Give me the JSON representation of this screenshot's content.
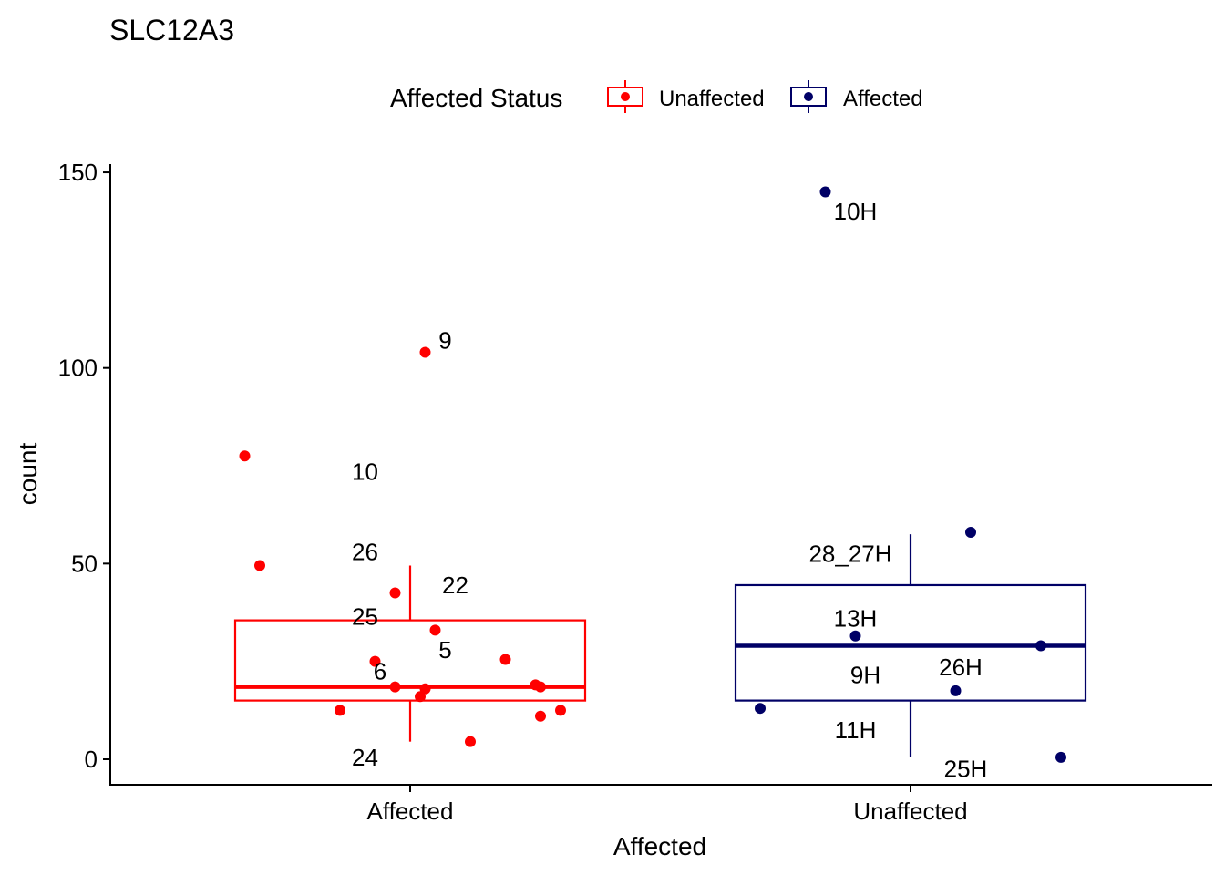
{
  "chart_data": {
    "type": "box",
    "title": "SLC12A3",
    "xlabel": "Affected",
    "ylabel": "count",
    "ylim": [
      -6,
      152
    ],
    "yticks": [
      0,
      50,
      100,
      150
    ],
    "categories": [
      "Affected",
      "Unaffected"
    ],
    "grid": false,
    "legend": {
      "title": "Affected Status",
      "placement": "top",
      "entries": [
        {
          "label": "Unaffected",
          "color": "#FF0000"
        },
        {
          "label": "Affected",
          "color": "#000066"
        }
      ]
    },
    "boxes": [
      {
        "category": "Affected",
        "color": "#FF0000",
        "whisker_low": 4.5,
        "q1": 15,
        "median": 18.5,
        "q3": 35.5,
        "whisker_high": 49.5
      },
      {
        "category": "Unaffected",
        "color": "#000066",
        "whisker_low": 0.5,
        "q1": 15,
        "median": 29,
        "q3": 44.5,
        "whisker_high": 57.5
      }
    ],
    "points": [
      {
        "category": "Affected",
        "jitter": 0.03,
        "y": 104
      },
      {
        "category": "Affected",
        "jitter": -0.33,
        "y": 77.5
      },
      {
        "category": "Affected",
        "jitter": -0.3,
        "y": 49.5
      },
      {
        "category": "Affected",
        "jitter": -0.03,
        "y": 42.5
      },
      {
        "category": "Affected",
        "jitter": 0.05,
        "y": 33
      },
      {
        "category": "Affected",
        "jitter": 0.19,
        "y": 25.5
      },
      {
        "category": "Affected",
        "jitter": -0.07,
        "y": 25
      },
      {
        "category": "Affected",
        "jitter": -0.03,
        "y": 18.5
      },
      {
        "category": "Affected",
        "jitter": 0.03,
        "y": 18
      },
      {
        "category": "Affected",
        "jitter": 0.25,
        "y": 19
      },
      {
        "category": "Affected",
        "jitter": 0.26,
        "y": 18.5
      },
      {
        "category": "Affected",
        "jitter": 0.02,
        "y": 16
      },
      {
        "category": "Affected",
        "jitter": -0.14,
        "y": 12.5
      },
      {
        "category": "Affected",
        "jitter": 0.3,
        "y": 12.5
      },
      {
        "category": "Affected",
        "jitter": 0.26,
        "y": 11
      },
      {
        "category": "Affected",
        "jitter": 0.12,
        "y": 4.5
      },
      {
        "category": "Unaffected",
        "jitter": -0.17,
        "y": 145
      },
      {
        "category": "Unaffected",
        "jitter": 0.12,
        "y": 58
      },
      {
        "category": "Unaffected",
        "jitter": -0.11,
        "y": 31.5
      },
      {
        "category": "Unaffected",
        "jitter": 0.26,
        "y": 29
      },
      {
        "category": "Unaffected",
        "jitter": 0.09,
        "y": 17.5
      },
      {
        "category": "Unaffected",
        "jitter": -0.3,
        "y": 13
      },
      {
        "category": "Unaffected",
        "jitter": 0.3,
        "y": 0.5
      }
    ],
    "annotations": [
      {
        "text": "9",
        "category": "Affected",
        "offset": 0.07,
        "y": 107
      },
      {
        "text": "10",
        "category": "Affected",
        "offset": -0.09,
        "y": 73.5
      },
      {
        "text": "26",
        "category": "Affected",
        "offset": -0.09,
        "y": 53
      },
      {
        "text": "22",
        "category": "Affected",
        "offset": 0.09,
        "y": 44.5
      },
      {
        "text": "25",
        "category": "Affected",
        "offset": -0.09,
        "y": 36.5
      },
      {
        "text": "5",
        "category": "Affected",
        "offset": 0.07,
        "y": 28
      },
      {
        "text": "6",
        "category": "Affected",
        "offset": -0.06,
        "y": 22.5
      },
      {
        "text": "24",
        "category": "Affected",
        "offset": -0.09,
        "y": 0.5
      },
      {
        "text": "10H",
        "category": "Unaffected",
        "offset": -0.11,
        "y": 140
      },
      {
        "text": "28_27H",
        "category": "Unaffected",
        "offset": -0.12,
        "y": 52.5
      },
      {
        "text": "13H",
        "category": "Unaffected",
        "offset": -0.11,
        "y": 36
      },
      {
        "text": "26H",
        "category": "Unaffected",
        "offset": 0.1,
        "y": 23.5
      },
      {
        "text": "9H",
        "category": "Unaffected",
        "offset": -0.09,
        "y": 21.5
      },
      {
        "text": "11H",
        "category": "Unaffected",
        "offset": -0.11,
        "y": 7.5
      },
      {
        "text": "25H",
        "category": "Unaffected",
        "offset": 0.11,
        "y": -2.5
      }
    ]
  }
}
